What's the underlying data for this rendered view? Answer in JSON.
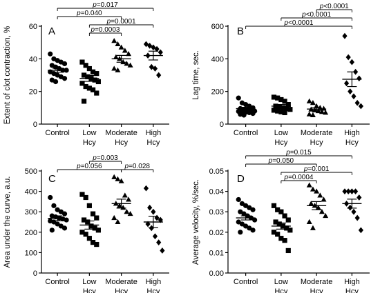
{
  "chart_data": [
    {
      "type": "scatter",
      "panel": "A",
      "ylabel": "Extent of clot contraction, %",
      "ylim": [
        0,
        60
      ],
      "yticks": [
        0,
        20,
        40,
        60
      ],
      "categories": [
        "Control",
        "Low Hcy",
        "Moderate Hcy",
        "High Hcy"
      ],
      "category_lines": [
        [
          "Control"
        ],
        [
          "Low",
          "Hcy"
        ],
        [
          "Moderate",
          "Hcy"
        ],
        [
          "High",
          "Hcy"
        ]
      ],
      "markers": [
        "circle",
        "square",
        "triangle",
        "diamond"
      ],
      "series": [
        {
          "values": [
            43,
            40,
            39,
            38,
            37,
            36,
            35,
            34,
            33,
            33,
            32,
            31,
            30,
            29,
            28,
            27,
            26
          ],
          "mean": 33,
          "sem": 1.2
        },
        {
          "values": [
            38,
            36,
            34,
            32,
            31,
            30,
            29,
            28,
            27,
            26,
            25,
            23,
            22,
            21,
            19,
            14
          ],
          "mean": 28,
          "sem": 1.8
        },
        {
          "values": [
            51,
            49,
            47,
            45,
            43,
            41,
            40,
            38,
            37,
            36,
            34,
            33
          ],
          "mean": 40,
          "sem": 2.1
        },
        {
          "values": [
            49,
            48,
            47,
            46,
            44,
            42,
            35,
            34,
            30
          ],
          "mean": 42,
          "sem": 2.7
        }
      ],
      "comparisons": [
        {
          "label": "p=0.017",
          "from": 0,
          "to": 3
        },
        {
          "label": "p=0.040",
          "from": 0,
          "to": 2
        },
        {
          "label": "p=0.0001",
          "from": 1,
          "to": 3
        },
        {
          "label": "p=0.0003",
          "from": 1,
          "to": 2
        }
      ]
    },
    {
      "type": "scatter",
      "panel": "B",
      "ylabel": "Lag time, sec.",
      "ylim": [
        0,
        600
      ],
      "yticks": [
        0,
        200,
        400,
        600
      ],
      "categories": [
        "Control",
        "Low Hcy",
        "Moderate Hcy",
        "High Hcy"
      ],
      "category_lines": [
        [
          "Control"
        ],
        [
          "Low",
          "Hcy"
        ],
        [
          "Moderate",
          "Hcy"
        ],
        [
          "High",
          "Hcy"
        ]
      ],
      "markers": [
        "circle",
        "square",
        "triangle",
        "diamond"
      ],
      "series": [
        {
          "values": [
            160,
            130,
            120,
            110,
            100,
            95,
            90,
            88,
            85,
            80,
            78,
            75,
            72,
            70,
            65,
            60,
            55
          ],
          "mean": 95,
          "sem": 8
        },
        {
          "values": [
            165,
            160,
            150,
            140,
            120,
            110,
            105,
            100,
            95,
            90,
            85,
            80,
            75,
            70
          ],
          "mean": 110,
          "sem": 10
        },
        {
          "values": [
            140,
            130,
            110,
            100,
            95,
            90,
            85,
            80,
            75,
            70,
            60,
            55
          ],
          "mean": 92,
          "sem": 8
        },
        {
          "values": [
            540,
            410,
            380,
            320,
            280,
            250,
            200,
            170,
            130,
            110
          ],
          "mean": 275,
          "sem": 45
        }
      ],
      "comparisons": [
        {
          "label": "p<0.0001",
          "from": 2,
          "to": 3
        },
        {
          "label": "p<0.0001",
          "from": 1,
          "to": 3
        },
        {
          "label": "p<0.0001",
          "from": 0,
          "to": 3
        }
      ]
    },
    {
      "type": "scatter",
      "panel": "C",
      "ylabel": "Area under the curve, a.u.",
      "ylim": [
        0,
        500
      ],
      "yticks": [
        0,
        100,
        200,
        300,
        400,
        500
      ],
      "categories": [
        "Control",
        "Low Hcy",
        "Moderate Hcy",
        "High Hcy"
      ],
      "category_lines": [
        [
          "Control"
        ],
        [
          "Low",
          "Hcy"
        ],
        [
          "Moderate",
          "Hcy"
        ],
        [
          "High",
          "Hcy"
        ]
      ],
      "markers": [
        "circle",
        "square",
        "triangle",
        "diamond"
      ],
      "series": [
        {
          "values": [
            370,
            330,
            310,
            300,
            290,
            280,
            275,
            270,
            265,
            260,
            255,
            250,
            240,
            230,
            220,
            210
          ],
          "mean": 268,
          "sem": 12
        },
        {
          "values": [
            385,
            370,
            330,
            290,
            270,
            260,
            250,
            230,
            220,
            210,
            200,
            190,
            170,
            150,
            140
          ],
          "mean": 235,
          "sem": 20
        },
        {
          "values": [
            470,
            460,
            450,
            380,
            360,
            340,
            330,
            320,
            300,
            290,
            270,
            250
          ],
          "mean": 340,
          "sem": 22
        },
        {
          "values": [
            415,
            320,
            300,
            270,
            260,
            240,
            220,
            180,
            150,
            110
          ],
          "mean": 250,
          "sem": 28
        }
      ],
      "comparisons": [
        {
          "label": "p=0.003",
          "from": 1,
          "to": 2
        },
        {
          "label": "p=0.056",
          "from": 0,
          "to": 2
        },
        {
          "label": "p=0.028",
          "from": 2,
          "to": 3
        }
      ]
    },
    {
      "type": "scatter",
      "panel": "D",
      "ylabel": "Average velocity, %/sec.",
      "ylim": [
        0,
        0.05
      ],
      "yticks": [
        "0.00",
        "0.01",
        "0.02",
        "0.03",
        "0.04",
        "0.05"
      ],
      "categories": [
        "Control",
        "Low Hcy",
        "Moderate Hcy",
        "High Hcy"
      ],
      "category_lines": [
        [
          "Control"
        ],
        [
          "Low",
          "Hcy"
        ],
        [
          "Moderate",
          "Hcy"
        ],
        [
          "High",
          "Hcy"
        ]
      ],
      "markers": [
        "circle",
        "square",
        "triangle",
        "diamond"
      ],
      "series": [
        {
          "values": [
            0.036,
            0.034,
            0.033,
            0.032,
            0.031,
            0.03,
            0.029,
            0.028,
            0.027,
            0.026,
            0.025,
            0.024,
            0.023,
            0.022,
            0.021,
            0.02
          ],
          "mean": 0.027,
          "sem": 0.001
        },
        {
          "values": [
            0.033,
            0.031,
            0.03,
            0.028,
            0.026,
            0.025,
            0.024,
            0.023,
            0.022,
            0.021,
            0.02,
            0.019,
            0.017,
            0.016,
            0.011
          ],
          "mean": 0.023,
          "sem": 0.0015
        },
        {
          "values": [
            0.043,
            0.041,
            0.04,
            0.038,
            0.036,
            0.034,
            0.033,
            0.032,
            0.03,
            0.028,
            0.025,
            0.022
          ],
          "mean": 0.033,
          "sem": 0.002
        },
        {
          "values": [
            0.04,
            0.04,
            0.04,
            0.04,
            0.037,
            0.034,
            0.032,
            0.03,
            0.027,
            0.021
          ],
          "mean": 0.034,
          "sem": 0.0022
        }
      ],
      "comparisons": [
        {
          "label": "p=0.015",
          "from": 0,
          "to": 3
        },
        {
          "label": "p=0.050",
          "from": 0,
          "to": 2
        },
        {
          "label": "p=0.001",
          "from": 1,
          "to": 3
        },
        {
          "label": "p=0.0004",
          "from": 1,
          "to": 2
        }
      ]
    }
  ]
}
